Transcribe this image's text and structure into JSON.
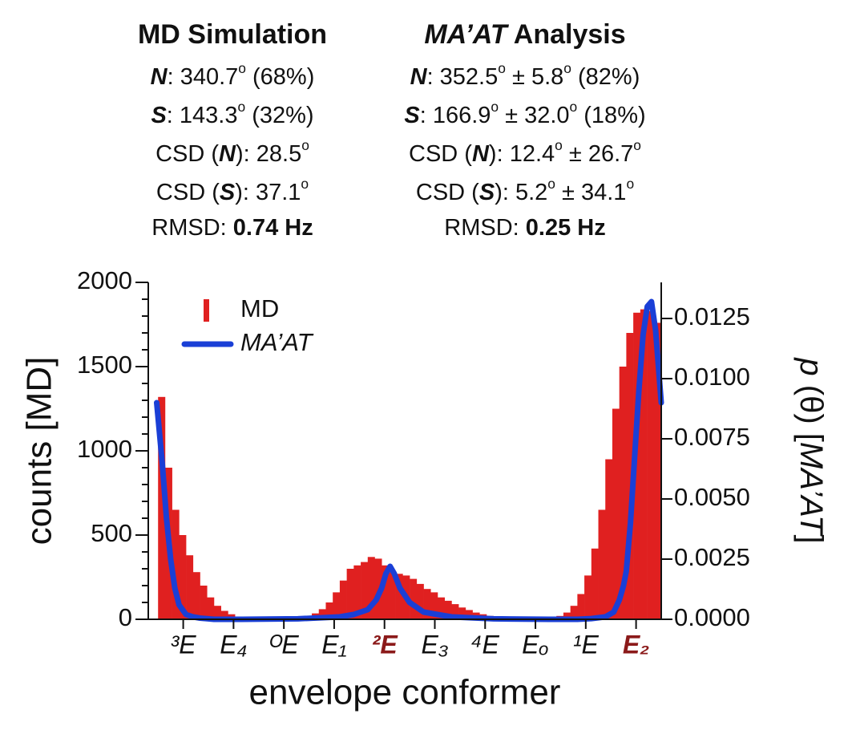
{
  "chart_data": {
    "type": "histogram",
    "header": [
      {
        "title": [
          [
            "MD Simulation",
            "b"
          ]
        ],
        "lines": [
          [
            [
              "N",
              "bi"
            ],
            [
              ":  340.7",
              "n"
            ],
            [
              "o",
              "sup"
            ],
            [
              " (68%)",
              "n"
            ]
          ],
          [
            [
              "S",
              "bi"
            ],
            [
              ":  143.3",
              "n"
            ],
            [
              "o",
              "sup"
            ],
            [
              " (32%)",
              "n"
            ]
          ],
          [
            [
              "CSD (",
              "n"
            ],
            [
              "N",
              "bi"
            ],
            [
              "):  28.5",
              "n"
            ],
            [
              "o",
              "sup"
            ]
          ],
          [
            [
              "CSD (",
              "n"
            ],
            [
              "S",
              "bi"
            ],
            [
              "):  37.1",
              "n"
            ],
            [
              "o",
              "sup"
            ]
          ],
          [
            [
              "RMSD:  ",
              "n"
            ],
            [
              "0.74 Hz",
              "b"
            ]
          ]
        ]
      },
      {
        "title": [
          [
            "MA’AT",
            "bi"
          ],
          [
            " Analysis",
            "b"
          ]
        ],
        "lines": [
          [
            [
              "N",
              "bi"
            ],
            [
              ":  352.5",
              "n"
            ],
            [
              "o",
              "sup"
            ],
            [
              " ± 5.8",
              "n"
            ],
            [
              "o",
              "sup"
            ],
            [
              "  (82%)",
              "n"
            ]
          ],
          [
            [
              "S",
              "bi"
            ],
            [
              ":  166.9",
              "n"
            ],
            [
              "o",
              "sup"
            ],
            [
              " ± 32.0",
              "n"
            ],
            [
              "o",
              "sup"
            ],
            [
              " (18%)",
              "n"
            ]
          ],
          [
            [
              "CSD (",
              "n"
            ],
            [
              "N",
              "bi"
            ],
            [
              "):  12.4",
              "n"
            ],
            [
              "o",
              "sup"
            ],
            [
              " ±  26.7",
              "n"
            ],
            [
              "o",
              "sup"
            ]
          ],
          [
            [
              "CSD (",
              "n"
            ],
            [
              "S",
              "bi"
            ],
            [
              "):  5.2",
              "n"
            ],
            [
              "o",
              "sup"
            ],
            [
              " ±  34.1",
              "n"
            ],
            [
              "o",
              "sup"
            ]
          ],
          [
            [
              "RMSD:  ",
              "n"
            ],
            [
              "0.25 Hz",
              "b"
            ]
          ]
        ]
      }
    ],
    "xlabel": "envelope conformer",
    "ylabel": "counts [MD]",
    "y2label": [
      [
        "p",
        "i"
      ],
      [
        " (θ) [",
        "n"
      ],
      [
        "MA’AT",
        "i"
      ],
      [
        "]",
        "n"
      ]
    ],
    "xlim": [
      -7,
      360
    ],
    "xticks": [
      {
        "value": 18,
        "label": "³E"
      },
      {
        "value": 54,
        "label": "E₄"
      },
      {
        "value": 90,
        "label": "ᴼE"
      },
      {
        "value": 126,
        "label": "E₁"
      },
      {
        "value": 162,
        "label": "²E"
      },
      {
        "value": 198,
        "label": "E₃"
      },
      {
        "value": 234,
        "label": "⁴E"
      },
      {
        "value": 270,
        "label": "Eₒ"
      },
      {
        "value": 306,
        "label": "¹E"
      },
      {
        "value": 342,
        "label": "E₂"
      }
    ],
    "xtick_colors": [
      "#111",
      "#111",
      "#111",
      "#111",
      "#8b1a1a",
      "#111",
      "#111",
      "#111",
      "#111",
      "#8b1a1a"
    ],
    "ylim": [
      0,
      2000
    ],
    "yticks": [
      0,
      500,
      1000,
      1500,
      2000
    ],
    "yticks_minor": [
      100,
      200,
      300,
      400,
      600,
      700,
      800,
      900,
      1100,
      1200,
      1300,
      1400,
      1600,
      1700,
      1800,
      1900
    ],
    "y2lim": [
      0,
      0.014
    ],
    "y2ticks": [
      {
        "value": 0,
        "label": "0.0000"
      },
      {
        "value": 0.0025,
        "label": "0.0025"
      },
      {
        "value": 0.005,
        "label": "0.0050"
      },
      {
        "value": 0.0075,
        "label": "0.0075"
      },
      {
        "value": 0.01,
        "label": "0.0100"
      },
      {
        "value": 0.0125,
        "label": "0.0125"
      }
    ],
    "legend": "upper left",
    "series": [
      {
        "name": "MD",
        "type": "histogram",
        "color": "#e02020",
        "bins": [
          0,
          5,
          10,
          15,
          20,
          25,
          30,
          35,
          40,
          45,
          50,
          55,
          60,
          65,
          70,
          75,
          80,
          85,
          90,
          95,
          100,
          105,
          110,
          115,
          120,
          125,
          130,
          135,
          140,
          145,
          150,
          155,
          160,
          165,
          170,
          175,
          180,
          185,
          190,
          195,
          200,
          205,
          210,
          215,
          220,
          225,
          230,
          235,
          240,
          245,
          250,
          255,
          260,
          265,
          270,
          275,
          280,
          285,
          290,
          295,
          300,
          305,
          310,
          315,
          320,
          325,
          330,
          335,
          340,
          345,
          350,
          355,
          360
        ],
        "values": [
          1320,
          900,
          650,
          500,
          380,
          280,
          200,
          130,
          80,
          50,
          30,
          15,
          8,
          5,
          3,
          2,
          2,
          3,
          5,
          8,
          12,
          20,
          35,
          60,
          100,
          160,
          230,
          300,
          320,
          340,
          370,
          360,
          320,
          280,
          270,
          260,
          240,
          210,
          180,
          160,
          130,
          110,
          90,
          70,
          55,
          40,
          30,
          20,
          12,
          8,
          5,
          3,
          2,
          2,
          3,
          5,
          10,
          20,
          40,
          80,
          150,
          260,
          420,
          650,
          950,
          1250,
          1500,
          1700,
          1820,
          1840,
          1830,
          1760
        ]
      },
      {
        "name": "MA’AT",
        "type": "line",
        "axis": "y2",
        "color": "#1a3fd6",
        "x": [
          -1,
          3,
          6,
          9,
          12,
          15,
          20,
          25,
          30,
          40,
          60,
          100,
          130,
          140,
          150,
          156,
          160,
          163,
          166,
          169,
          173,
          180,
          190,
          210,
          240,
          280,
          300,
          310,
          320,
          326,
          330,
          333,
          335,
          338,
          341,
          344,
          347,
          350,
          353,
          356,
          358,
          360
        ],
        "values": [
          0.009,
          0.0065,
          0.0042,
          0.0025,
          0.0013,
          0.0006,
          0.0002,
          0.0001,
          5e-05,
          0,
          0,
          2e-05,
          0.0001,
          0.0002,
          0.0004,
          0.0008,
          0.0013,
          0.0019,
          0.0022,
          0.0019,
          0.0013,
          0.0007,
          0.0003,
          0.0001,
          2e-05,
          0,
          0,
          3e-05,
          0.0001,
          0.0003,
          0.0008,
          0.0014,
          0.002,
          0.004,
          0.0068,
          0.0095,
          0.0118,
          0.013,
          0.0132,
          0.012,
          0.0105,
          0.009
        ]
      }
    ]
  }
}
